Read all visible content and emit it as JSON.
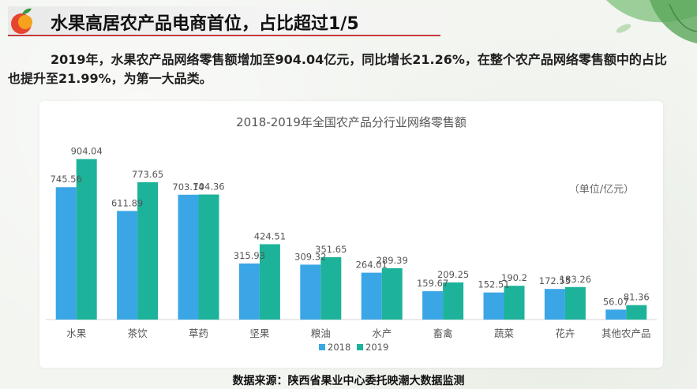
{
  "header": {
    "title": "水果高居农产品电商首位，占比超过1/5"
  },
  "intro_text": "2019年，水果农产品网络零售额增加至904.04亿元，同比增长21.26%，在整个农产品网络零售额中的占比也提升至21.99%，为第一大品类。",
  "source_text": "数据来源：陕西省果业中心委托映潮大数据监测",
  "colors": {
    "series_2018": "#3aa6e6",
    "series_2019": "#1db39a",
    "title_underline": "#c53a3a"
  },
  "chart_data": {
    "type": "bar",
    "title": "2018-2019年全国农产品分行业网络零售额",
    "unit_label": "（单位/亿元）",
    "categories": [
      "水果",
      "茶饮",
      "草药",
      "坚果",
      "粮油",
      "水产",
      "畜禽",
      "蔬菜",
      "花卉",
      "其他农产品"
    ],
    "series": [
      {
        "name": "2018",
        "values": [
          745.56,
          611.89,
          703.14,
          315.93,
          309.32,
          264.01,
          159.67,
          152.51,
          172.55,
          56.07
        ]
      },
      {
        "name": "2019",
        "values": [
          904.04,
          773.65,
          704.36,
          424.51,
          351.65,
          289.39,
          209.25,
          190.2,
          183.26,
          81.36
        ]
      }
    ],
    "value_labels": {
      "2018": [
        "745.56",
        "611.89",
        "703.14",
        "315.93",
        "309.32",
        "264.01",
        "159.67",
        "152.51",
        "172.55",
        "56.07"
      ],
      "2019": [
        "904.04",
        "773.65",
        "704.36",
        "424.51",
        "351.65",
        "289.39",
        "209.25",
        "190.2",
        "183.26",
        "81.36"
      ]
    },
    "ylim": [
      0,
      1000
    ],
    "grid": false,
    "legend_position": "bottom-center"
  }
}
